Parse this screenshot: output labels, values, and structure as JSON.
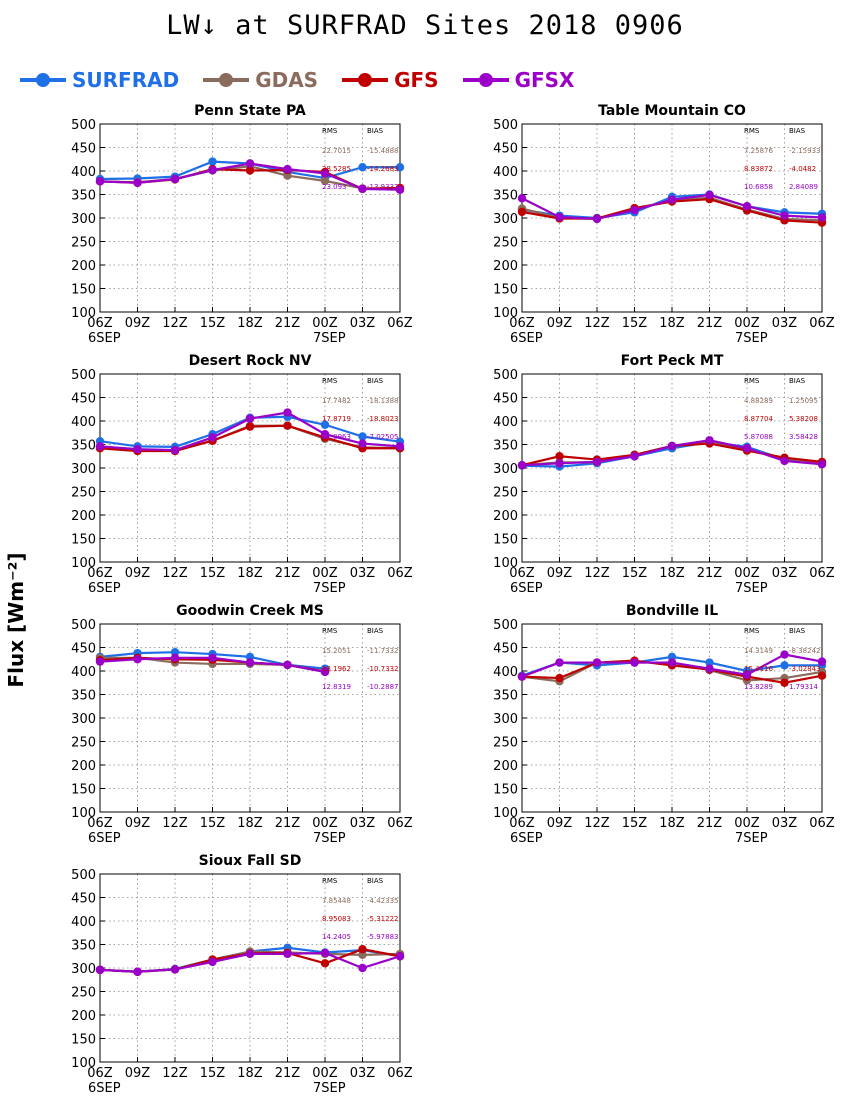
{
  "title": "LW↓ at SURFRAD Sites    2018 0906",
  "y_axis_label": "Flux [Wm⁻²]",
  "legend": [
    {
      "name": "SURFRAD",
      "color": "#1f6fe6"
    },
    {
      "name": "GDAS",
      "color": "#8b6b5c"
    },
    {
      "name": "GFS",
      "color": "#c00000"
    },
    {
      "name": "GFSX",
      "color": "#9a00c8"
    }
  ],
  "stats_headers": {
    "rms": "RMS",
    "bias": "BIAS"
  },
  "chart_data": [
    {
      "type": "line",
      "title": "Penn State PA",
      "categories": [
        "06Z",
        "09Z",
        "12Z",
        "15Z",
        "18Z",
        "21Z",
        "00Z",
        "03Z",
        "06Z"
      ],
      "date_labels": [
        {
          "index": 0,
          "text": "6SEP"
        },
        {
          "index": 6,
          "text": "7SEP"
        }
      ],
      "ylim": [
        100,
        500
      ],
      "yticks": [
        100,
        150,
        200,
        250,
        300,
        350,
        400,
        450,
        500
      ],
      "grid": true,
      "series": [
        {
          "name": "SURFRAD",
          "values": [
            383,
            384,
            388,
            420,
            416,
            398,
            385,
            408,
            408
          ]
        },
        {
          "name": "GDAS",
          "values": [
            378,
            376,
            383,
            401,
            410,
            390,
            379,
            363,
            363
          ]
        },
        {
          "name": "GFS",
          "values": [
            378,
            375,
            382,
            404,
            401,
            402,
            398,
            362,
            364
          ]
        },
        {
          "name": "GFSX",
          "values": [
            378,
            375,
            383,
            402,
            416,
            404,
            395,
            362,
            360
          ]
        }
      ],
      "stats": [
        {
          "rms": "22.7015",
          "bias": "-15.4888",
          "color": "#8b6b5c"
        },
        {
          "rms": "28.5285",
          "bias": "-14.2683",
          "color": "#c00000"
        },
        {
          "rms": "23.093",
          "bias": "-13.9332",
          "color": "#9a00c8"
        }
      ]
    },
    {
      "type": "line",
      "title": "Table Mountain CO",
      "categories": [
        "06Z",
        "09Z",
        "12Z",
        "15Z",
        "18Z",
        "21Z",
        "00Z",
        "03Z",
        "06Z"
      ],
      "date_labels": [
        {
          "index": 0,
          "text": "6SEP"
        },
        {
          "index": 6,
          "text": "7SEP"
        }
      ],
      "ylim": [
        100,
        500
      ],
      "yticks": [
        100,
        150,
        200,
        250,
        300,
        350,
        400,
        450,
        500
      ],
      "grid": true,
      "series": [
        {
          "name": "SURFRAD",
          "values": [
            318,
            305,
            300,
            312,
            345,
            350,
            325,
            312,
            309
          ]
        },
        {
          "name": "GDAS",
          "values": [
            320,
            300,
            298,
            318,
            338,
            343,
            318,
            298,
            295
          ]
        },
        {
          "name": "GFS",
          "values": [
            313,
            299,
            299,
            321,
            335,
            340,
            316,
            295,
            290
          ]
        },
        {
          "name": "GFSX",
          "values": [
            342,
            302,
            298,
            317,
            339,
            349,
            325,
            305,
            301
          ]
        }
      ],
      "stats": [
        {
          "rms": "7.25876",
          "bias": "-2.15933",
          "color": "#8b6b5c"
        },
        {
          "rms": "8.83872",
          "bias": "-4.0482",
          "color": "#c00000"
        },
        {
          "rms": "10.6858",
          "bias": "2.84089",
          "color": "#9a00c8"
        }
      ]
    },
    {
      "type": "line",
      "title": "Desert Rock NV",
      "categories": [
        "06Z",
        "09Z",
        "12Z",
        "15Z",
        "18Z",
        "21Z",
        "00Z",
        "03Z",
        "06Z"
      ],
      "date_labels": [
        {
          "index": 0,
          "text": "6SEP"
        },
        {
          "index": 6,
          "text": "7SEP"
        }
      ],
      "ylim": [
        100,
        500
      ],
      "yticks": [
        100,
        150,
        200,
        250,
        300,
        350,
        400,
        450,
        500
      ],
      "grid": true,
      "series": [
        {
          "name": "SURFRAD",
          "values": [
            357,
            346,
            345,
            372,
            407,
            409,
            392,
            367,
            356
          ]
        },
        {
          "name": "GDAS",
          "values": [
            345,
            338,
            338,
            358,
            390,
            390,
            362,
            344,
            342
          ]
        },
        {
          "name": "GFS",
          "values": [
            342,
            336,
            336,
            358,
            388,
            390,
            365,
            342,
            342
          ]
        },
        {
          "name": "GFSX",
          "values": [
            346,
            340,
            338,
            365,
            405,
            418,
            372,
            352,
            346
          ]
        }
      ],
      "stats": [
        {
          "rms": "17.7482",
          "bias": "-18.1388",
          "color": "#8b6b5c"
        },
        {
          "rms": "17.8719",
          "bias": "-18.8023",
          "color": "#c00000"
        },
        {
          "rms": "11.0963",
          "bias": "-7.02505",
          "color": "#9a00c8"
        }
      ]
    },
    {
      "type": "line",
      "title": "Fort Peck MT",
      "categories": [
        "06Z",
        "09Z",
        "12Z",
        "15Z",
        "18Z",
        "21Z",
        "00Z",
        "03Z",
        "06Z"
      ],
      "date_labels": [
        {
          "index": 0,
          "text": "6SEP"
        },
        {
          "index": 6,
          "text": "7SEP"
        }
      ],
      "ylim": [
        100,
        500
      ],
      "yticks": [
        100,
        150,
        200,
        250,
        300,
        350,
        400,
        450,
        500
      ],
      "grid": true,
      "series": [
        {
          "name": "SURFRAD",
          "values": [
            305,
            303,
            310,
            325,
            342,
            355,
            345,
            318,
            310
          ]
        },
        {
          "name": "GDAS",
          "values": [
            306,
            312,
            312,
            328,
            347,
            355,
            340,
            320,
            312
          ]
        },
        {
          "name": "GFS",
          "values": [
            306,
            325,
            318,
            328,
            347,
            352,
            337,
            322,
            313
          ]
        },
        {
          "name": "GFSX",
          "values": [
            306,
            310,
            313,
            325,
            347,
            359,
            342,
            315,
            308
          ]
        }
      ],
      "stats": [
        {
          "rms": "4.88289",
          "bias": "1.25095",
          "color": "#8b6b5c"
        },
        {
          "rms": "8.87704",
          "bias": "5.38208",
          "color": "#c00000"
        },
        {
          "rms": "5.87088",
          "bias": "3.58428",
          "color": "#9a00c8"
        }
      ]
    },
    {
      "type": "line",
      "title": "Goodwin Creek MS",
      "categories": [
        "06Z",
        "09Z",
        "12Z",
        "15Z",
        "18Z",
        "21Z",
        "00Z",
        "03Z",
        "06Z"
      ],
      "date_labels": [
        {
          "index": 0,
          "text": "6SEP"
        },
        {
          "index": 6,
          "text": "7SEP"
        }
      ],
      "ylim": [
        100,
        500
      ],
      "yticks": [
        100,
        150,
        200,
        250,
        300,
        350,
        400,
        450,
        500
      ],
      "grid": true,
      "series": [
        {
          "name": "SURFRAD",
          "values": [
            430,
            438,
            440,
            436,
            430,
            413,
            405,
            null,
            null
          ]
        },
        {
          "name": "GDAS",
          "values": [
            428,
            428,
            418,
            415,
            415,
            413,
            398,
            null,
            null
          ]
        },
        {
          "name": "GFS",
          "values": [
            423,
            428,
            425,
            424,
            418,
            413,
            399,
            null,
            null
          ]
        },
        {
          "name": "GFSX",
          "values": [
            420,
            425,
            428,
            428,
            418,
            413,
            398,
            null,
            null
          ]
        }
      ],
      "stats": [
        {
          "rms": "15.2051",
          "bias": "-11.7332",
          "color": "#8b6b5c"
        },
        {
          "rms": "13.1962",
          "bias": "-10.7332",
          "color": "#c00000"
        },
        {
          "rms": "12.8319",
          "bias": "-10.2887",
          "color": "#9a00c8"
        }
      ]
    },
    {
      "type": "line",
      "title": "Bondville IL",
      "categories": [
        "06Z",
        "09Z",
        "12Z",
        "15Z",
        "18Z",
        "21Z",
        "00Z",
        "03Z",
        "06Z"
      ],
      "date_labels": [
        {
          "index": 0,
          "text": "6SEP"
        },
        {
          "index": 6,
          "text": "7SEP"
        }
      ],
      "ylim": [
        100,
        500
      ],
      "yticks": [
        100,
        150,
        200,
        250,
        300,
        350,
        400,
        450,
        500
      ],
      "grid": true,
      "series": [
        {
          "name": "SURFRAD",
          "values": [
            390,
            418,
            412,
            418,
            430,
            418,
            400,
            412,
            412
          ]
        },
        {
          "name": "GDAS",
          "values": [
            388,
            378,
            418,
            418,
            418,
            402,
            380,
            385,
            398
          ]
        },
        {
          "name": "GFS",
          "values": [
            388,
            385,
            418,
            422,
            412,
            403,
            388,
            375,
            390
          ]
        },
        {
          "name": "GFSX",
          "values": [
            388,
            418,
            418,
            418,
            418,
            405,
            392,
            435,
            420
          ]
        }
      ],
      "stats": [
        {
          "rms": "14.3149",
          "bias": "-8.38242",
          "color": "#8b6b5c"
        },
        {
          "rms": "15.4116",
          "bias": "-3.02843",
          "color": "#c00000"
        },
        {
          "rms": "13.8289",
          "bias": "1.79314",
          "color": "#9a00c8"
        }
      ]
    },
    {
      "type": "line",
      "title": "Sioux Fall SD",
      "categories": [
        "06Z",
        "09Z",
        "12Z",
        "15Z",
        "18Z",
        "21Z",
        "00Z",
        "03Z",
        "06Z"
      ],
      "date_labels": [
        {
          "index": 0,
          "text": "6SEP"
        },
        {
          "index": 6,
          "text": "7SEP"
        }
      ],
      "ylim": [
        100,
        500
      ],
      "yticks": [
        100,
        150,
        200,
        250,
        300,
        350,
        400,
        450,
        500
      ],
      "grid": true,
      "series": [
        {
          "name": "SURFRAD",
          "values": [
            296,
            292,
            298,
            318,
            335,
            343,
            333,
            338,
            325
          ]
        },
        {
          "name": "GDAS",
          "values": [
            296,
            292,
            297,
            318,
            335,
            333,
            330,
            328,
            330
          ]
        },
        {
          "name": "GFS",
          "values": [
            296,
            292,
            297,
            318,
            331,
            332,
            310,
            340,
            325
          ]
        },
        {
          "name": "GFSX",
          "values": [
            296,
            292,
            297,
            313,
            330,
            330,
            332,
            300,
            325
          ]
        }
      ],
      "stats": [
        {
          "rms": "7.85448",
          "bias": "-4.42335",
          "color": "#8b6b5c"
        },
        {
          "rms": "8.95083",
          "bias": "-5.31222",
          "color": "#c00000"
        },
        {
          "rms": "14.2405",
          "bias": "-5.97883",
          "color": "#9a00c8"
        }
      ]
    }
  ]
}
